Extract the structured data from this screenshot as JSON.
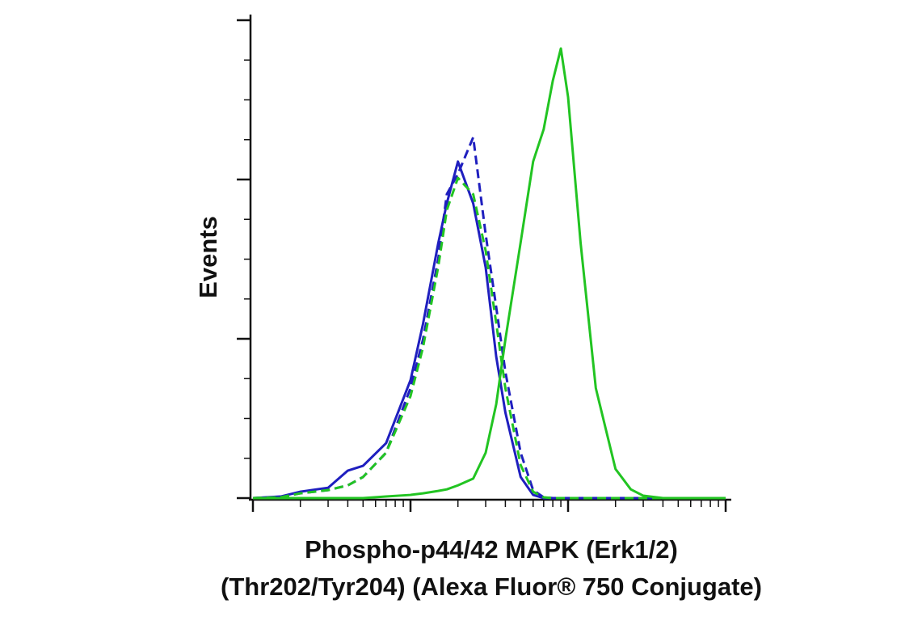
{
  "chart_data": {
    "type": "line",
    "ylabel": "Events",
    "xlabel": [
      "Phospho-p44/42 MAPK (Erk1/2)",
      "(Thr202/Tyr204) (Alexa Fluor® 750 Conjugate)"
    ],
    "xscale": "log",
    "xlim": [
      1,
      1086
    ],
    "xticks": [
      1,
      10,
      100,
      1000
    ],
    "xminor_ticks": [
      2,
      3,
      4,
      5,
      6,
      7,
      8,
      9,
      20,
      30,
      40,
      50,
      60,
      70,
      80,
      90,
      200,
      300,
      400,
      500,
      600,
      700,
      800,
      900
    ],
    "ylim": [
      0,
      12
    ],
    "yticks": [
      0,
      4,
      8,
      12
    ],
    "yminor_ticks": [
      1,
      2,
      3,
      5,
      6,
      7,
      9,
      10,
      11
    ],
    "x": [
      1,
      1.5,
      2,
      3,
      4,
      5,
      7,
      10,
      12,
      15,
      17,
      20,
      25,
      30,
      35,
      40,
      50,
      60,
      70,
      80,
      90,
      100,
      120,
      150,
      200,
      250,
      300,
      400,
      500,
      700,
      1000
    ],
    "series": [
      {
        "color": "#1f1fbf",
        "dash": "solid",
        "values": [
          0,
          0.04,
          0.16,
          0.26,
          0.69,
          0.81,
          1.38,
          2.96,
          4.37,
          6.4,
          7.4,
          8.45,
          7.4,
          5.79,
          3.55,
          2.15,
          0.53,
          0.08,
          0,
          0,
          0,
          0,
          0,
          0,
          0,
          0,
          0,
          0,
          0,
          0,
          0
        ]
      },
      {
        "color": "#1f1fbf",
        "dash": "dashed",
        "values": [
          0,
          0.02,
          0.12,
          0.2,
          0.32,
          0.53,
          1.14,
          2.76,
          3.98,
          6.01,
          7.63,
          8.14,
          9.06,
          6.62,
          4.79,
          3.17,
          1.14,
          0.2,
          0.02,
          0,
          0,
          0,
          0,
          0,
          0,
          0,
          0,
          0,
          0,
          0,
          0
        ]
      },
      {
        "color": "#22c422",
        "dash": "dashed",
        "values": [
          0,
          0.02,
          0.12,
          0.2,
          0.32,
          0.53,
          1.14,
          2.56,
          3.78,
          5.81,
          7.23,
          8.04,
          7.63,
          6.21,
          4.39,
          2.76,
          0.83,
          0.16,
          0.02,
          0,
          0,
          0,
          0,
          0,
          0,
          0,
          0,
          0,
          0,
          0,
          0
        ]
      },
      {
        "color": "#22c422",
        "dash": "solid",
        "values": [
          0,
          0,
          0,
          0,
          0,
          0,
          0.04,
          0.08,
          0.12,
          0.18,
          0.22,
          0.32,
          0.49,
          1.14,
          2.36,
          3.98,
          6.42,
          8.45,
          9.26,
          10.48,
          11.29,
          10.07,
          6.42,
          2.76,
          0.73,
          0.22,
          0.06,
          0,
          0,
          0,
          0
        ]
      }
    ]
  }
}
